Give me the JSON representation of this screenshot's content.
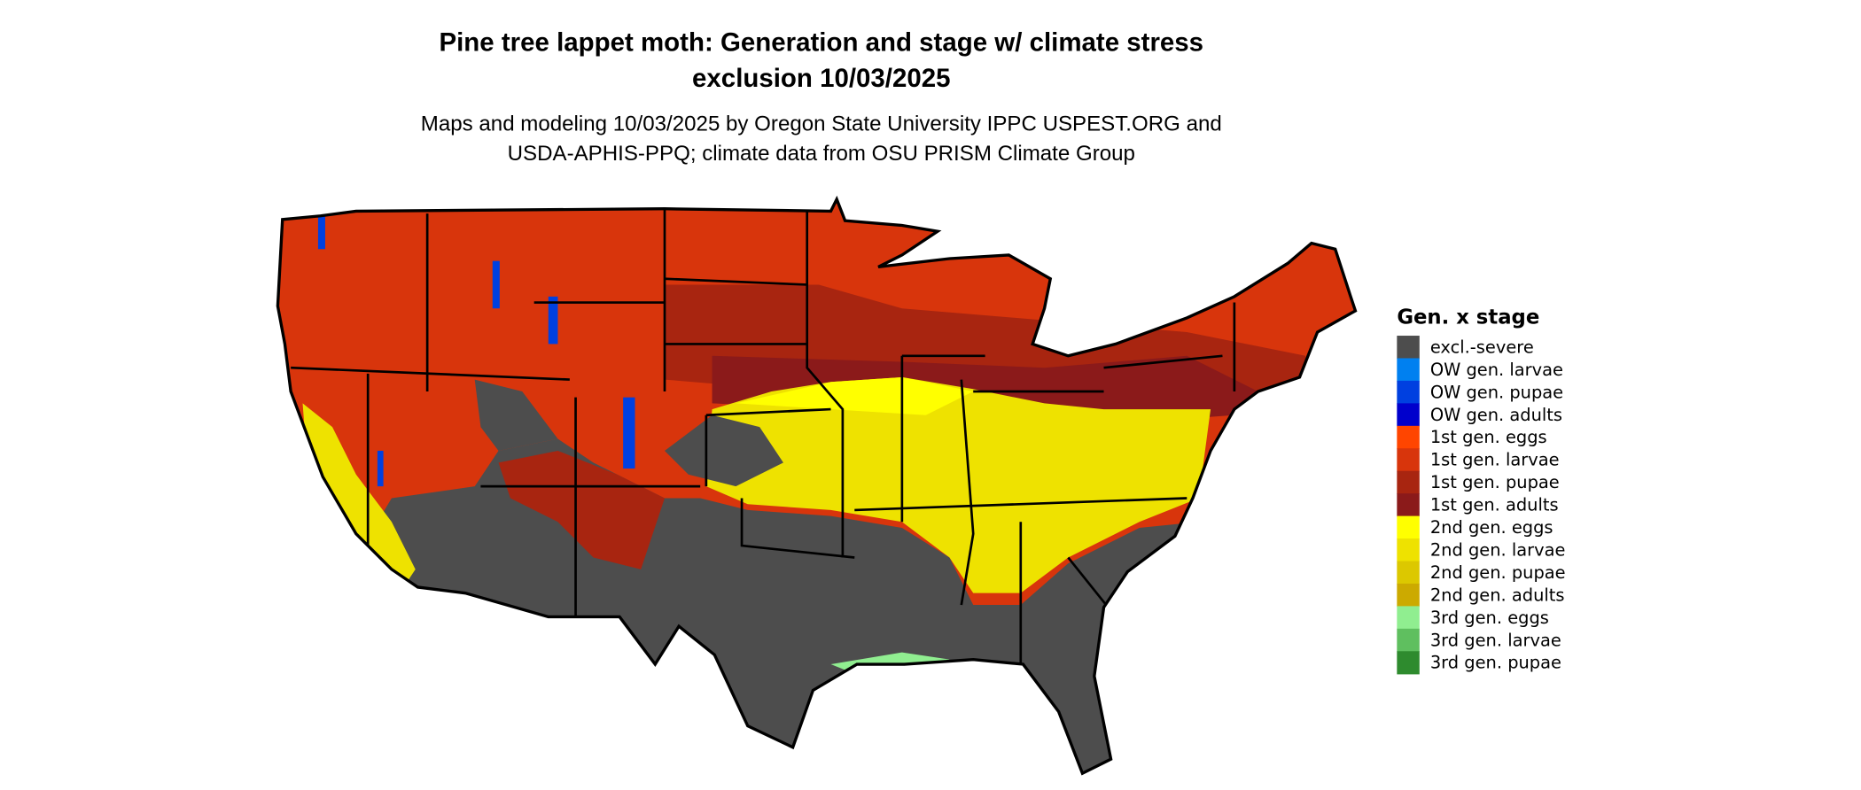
{
  "title_line1": "Pine tree lappet moth: Generation and stage w/ climate stress",
  "title_line2": "exclusion 10/03/2025",
  "subtitle_line1": "Maps and modeling 10/03/2025 by Oregon State University IPPC USPEST.ORG and",
  "subtitle_line2": "USDA-APHIS-PPQ; climate data from OSU PRISM Climate Group",
  "legend": {
    "title": "Gen. x stage",
    "items": [
      {
        "label": "excl.-severe",
        "color": "#4d4d4d"
      },
      {
        "label": "OW gen. larvae",
        "color": "#0080f0"
      },
      {
        "label": "OW gen. pupae",
        "color": "#0040e0"
      },
      {
        "label": "OW gen. adults",
        "color": "#0000cc"
      },
      {
        "label": "1st gen. eggs",
        "color": "#ff4500"
      },
      {
        "label": "1st gen. larvae",
        "color": "#d8350c"
      },
      {
        "label": "1st gen. pupae",
        "color": "#a82510"
      },
      {
        "label": "1st gen. adults",
        "color": "#8b1a1a"
      },
      {
        "label": "2nd gen. eggs",
        "color": "#ffff00"
      },
      {
        "label": "2nd gen. larvae",
        "color": "#eee200"
      },
      {
        "label": "2nd gen. pupae",
        "color": "#dcc800"
      },
      {
        "label": "2nd gen. adults",
        "color": "#ccaa00"
      },
      {
        "label": "3rd gen. eggs",
        "color": "#90ee90"
      },
      {
        "label": "3rd gen. larvae",
        "color": "#5fbf5f"
      },
      {
        "label": "3rd gen. pupae",
        "color": "#2e8b2e"
      }
    ]
  }
}
